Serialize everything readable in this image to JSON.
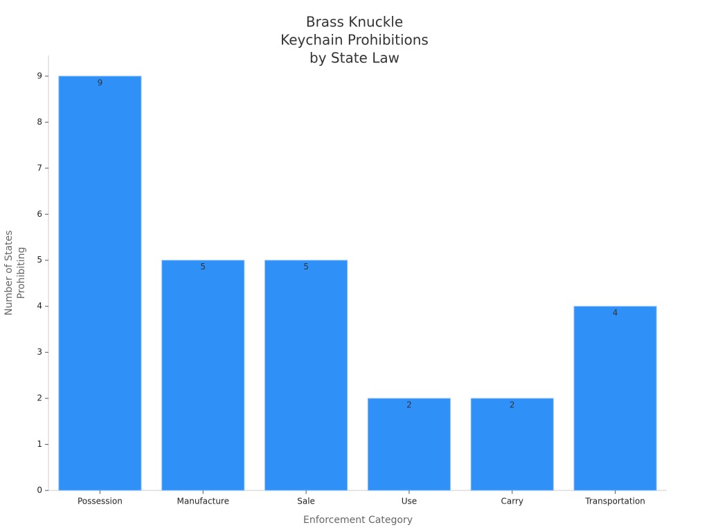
{
  "chart_data": {
    "type": "bar",
    "title": [
      "Brass Knuckle",
      "Keychain Prohibitions",
      "by State Law"
    ],
    "x_label": "Enforcement Category",
    "y_label": [
      "Number of States",
      "Prohibiting"
    ],
    "categories": [
      "Possession",
      "Manufacture",
      "Sale",
      "Use",
      "Carry",
      "Transportation"
    ],
    "values": [
      9,
      5,
      5,
      2,
      2,
      4
    ],
    "color": "#2f91f8",
    "ylim": [
      0,
      9.45
    ],
    "yticks": [
      0,
      1,
      2,
      3,
      4,
      5,
      6,
      7,
      8,
      9
    ],
    "grid": false
  }
}
